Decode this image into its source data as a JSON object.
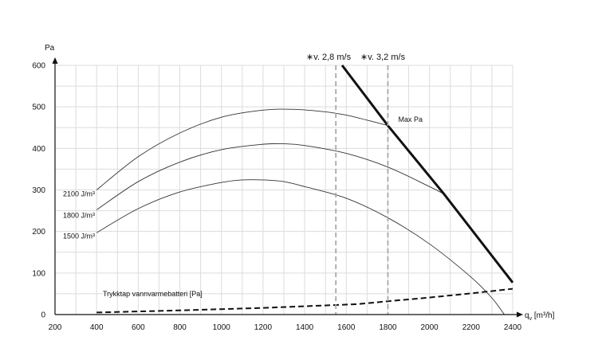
{
  "chart_data": {
    "type": "line",
    "title": "",
    "xlabel": "q",
    "xlabel_sub": "v",
    "xlabel_unit": " [m³/h]",
    "ylabel": "Pa",
    "xlim": [
      200,
      2400
    ],
    "ylim": [
      0,
      600
    ],
    "x_ticks": [
      200,
      400,
      600,
      800,
      1000,
      1200,
      1400,
      1600,
      1800,
      2000,
      2200,
      2400
    ],
    "y_ticks": [
      0,
      100,
      200,
      300,
      400,
      500,
      600
    ],
    "x_minor_step": 100,
    "y_minor_step": 50,
    "grid": true,
    "series": [
      {
        "name": "2100 J/m³",
        "style": "thin",
        "points": [
          [
            400,
            300
          ],
          [
            600,
            380
          ],
          [
            800,
            437
          ],
          [
            1000,
            475
          ],
          [
            1200,
            492
          ],
          [
            1350,
            494
          ],
          [
            1500,
            488
          ],
          [
            1600,
            480
          ],
          [
            1700,
            468
          ],
          [
            1800,
            455
          ]
        ]
      },
      {
        "name": "1800 J/m³",
        "style": "thin",
        "points": [
          [
            400,
            252
          ],
          [
            600,
            320
          ],
          [
            800,
            367
          ],
          [
            1000,
            397
          ],
          [
            1200,
            410
          ],
          [
            1300,
            411
          ],
          [
            1400,
            407
          ],
          [
            1600,
            388
          ],
          [
            1800,
            355
          ],
          [
            2000,
            308
          ],
          [
            2070,
            290
          ]
        ]
      },
      {
        "name": "1500 J/m³",
        "style": "thin",
        "points": [
          [
            400,
            197
          ],
          [
            600,
            255
          ],
          [
            800,
            295
          ],
          [
            1000,
            318
          ],
          [
            1100,
            324
          ],
          [
            1200,
            324
          ],
          [
            1300,
            320
          ],
          [
            1400,
            308
          ],
          [
            1600,
            280
          ],
          [
            1800,
            233
          ],
          [
            2000,
            170
          ],
          [
            2200,
            90
          ],
          [
            2300,
            40
          ],
          [
            2360,
            0
          ]
        ]
      },
      {
        "name": "Max Pa",
        "style": "thick",
        "points": [
          [
            1580,
            600
          ],
          [
            1800,
            455
          ],
          [
            2070,
            290
          ],
          [
            2400,
            77
          ]
        ]
      },
      {
        "name": "Trykktap vannvarmebatteri [Pa]",
        "style": "dashed",
        "points": [
          [
            400,
            5
          ],
          [
            800,
            10
          ],
          [
            1200,
            16
          ],
          [
            1650,
            25
          ],
          [
            1800,
            32
          ],
          [
            2000,
            41
          ],
          [
            2200,
            51
          ],
          [
            2400,
            62
          ]
        ]
      }
    ],
    "velocity_lines": [
      {
        "label": "∗v. 2,8 m/s",
        "x": 1550
      },
      {
        "label": "∗v. 3,2 m/s",
        "x": 1800
      }
    ],
    "annotations": {
      "max_pa": {
        "text": "Max Pa",
        "x": 1850,
        "y": 470
      },
      "pressure_drop": {
        "text": "Trykktap vannvarmebatteri [Pa]",
        "x": 430,
        "y": 50
      }
    },
    "curve_labels": [
      {
        "text": "2100 J/m³",
        "y": 290
      },
      {
        "text": "1800 J/m³",
        "y": 239
      },
      {
        "text": "1500 J/m³",
        "y": 189
      }
    ]
  },
  "colors": {
    "grid": "#dcdcdc",
    "axis": "#111111",
    "curve": "#333333",
    "velocity": "#a8a8a8"
  }
}
